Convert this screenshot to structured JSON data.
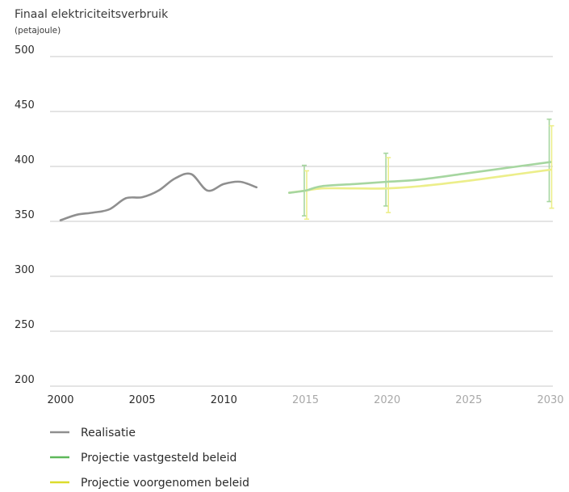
{
  "chart_data": {
    "type": "line",
    "title": "Finaal elektriciteitsverbruik",
    "subtitle": "(petajoule)",
    "xlabel": "",
    "ylabel": "",
    "xlim": [
      2000,
      2030
    ],
    "ylim": [
      200,
      500
    ],
    "yticks": [
      200,
      250,
      300,
      350,
      400,
      450,
      500
    ],
    "xticks": [
      2000,
      2005,
      2010,
      2015,
      2020,
      2025,
      2030
    ],
    "grid": true,
    "legend_position": "bottom-left",
    "series": [
      {
        "name": "Realisatie",
        "color": "#8f8f8f",
        "x": [
          2000,
          2001,
          2002,
          2003,
          2004,
          2005,
          2006,
          2007,
          2008,
          2009,
          2010,
          2011,
          2012
        ],
        "y": [
          351,
          356,
          358,
          361,
          371,
          372,
          378,
          389,
          393,
          378,
          384,
          386,
          381
        ]
      },
      {
        "name": "Projectie vastgesteld beleid",
        "color": "#a6d6a0",
        "x": [
          2014,
          2015,
          2016,
          2018,
          2020,
          2022,
          2025,
          2028,
          2030
        ],
        "y": [
          376,
          378,
          382,
          384,
          386,
          388,
          394,
          400,
          404
        ],
        "error_bars": [
          {
            "x": 2015,
            "low": 355,
            "high": 401
          },
          {
            "x": 2020,
            "low": 364,
            "high": 412
          },
          {
            "x": 2030,
            "low": 368,
            "high": 443
          }
        ]
      },
      {
        "name": "Projectie voorgenomen beleid",
        "color": "#ecee8a",
        "x": [
          2014,
          2015,
          2016,
          2018,
          2020,
          2022,
          2025,
          2028,
          2030
        ],
        "y": [
          376,
          378,
          380,
          380,
          380,
          382,
          387,
          393,
          397
        ],
        "error_bars": [
          {
            "x": 2015,
            "low": 352,
            "high": 396
          },
          {
            "x": 2020,
            "low": 358,
            "high": 408
          },
          {
            "x": 2030,
            "low": 362,
            "high": 437
          }
        ]
      }
    ]
  }
}
